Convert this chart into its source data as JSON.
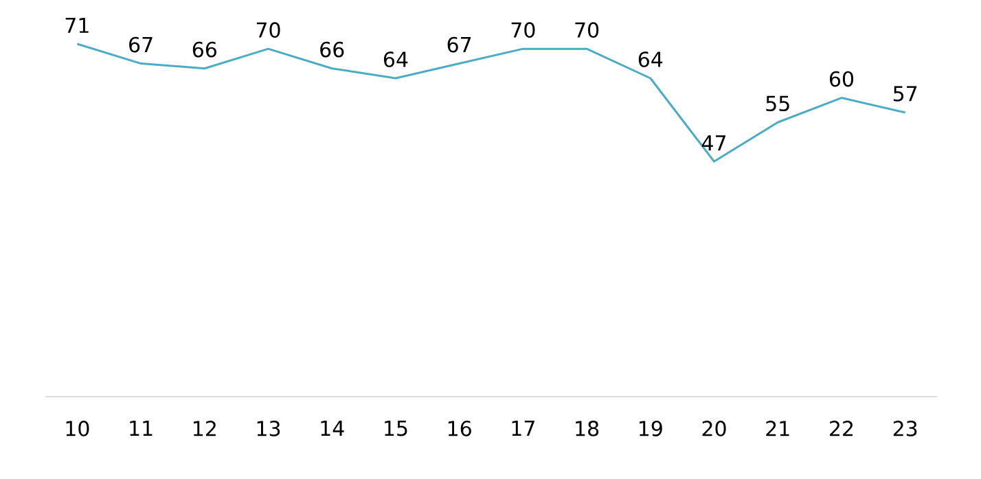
{
  "chart_data": {
    "type": "line",
    "categories": [
      "10",
      "11",
      "12",
      "13",
      "14",
      "15",
      "16",
      "17",
      "18",
      "19",
      "20",
      "21",
      "22",
      "23"
    ],
    "values": [
      71,
      67,
      66,
      70,
      66,
      64,
      67,
      70,
      70,
      64,
      47,
      55,
      60,
      57
    ],
    "color": "#4bacc6",
    "data_labels": true
  }
}
